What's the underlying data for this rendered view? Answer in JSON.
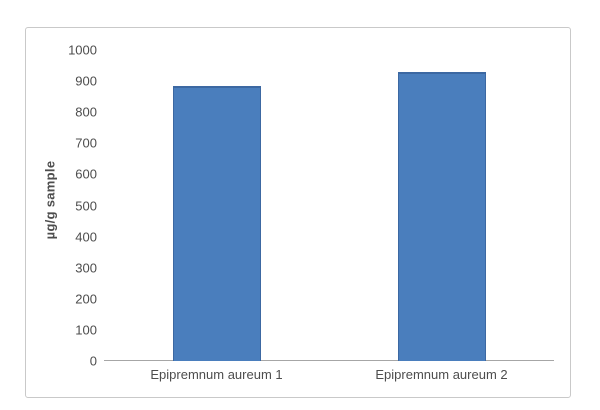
{
  "chart_data": {
    "type": "bar",
    "categories": [
      "Epipremnum aureum 1",
      "Epipremnum aureum 2"
    ],
    "values": [
      885,
      930
    ],
    "title": "",
    "xlabel": "",
    "ylabel": "µg/g sample",
    "ylim": [
      0,
      1000
    ],
    "yticks": [
      0,
      100,
      200,
      300,
      400,
      500,
      600,
      700,
      800,
      900,
      1000
    ],
    "grid": false,
    "legend_position": "none",
    "colors": {
      "bar_fill": "#4a7ebd",
      "bar_border": "#3c68a2",
      "axis_line": "#a6a6a6",
      "text": "#4d4d4d",
      "frame_border": "#c9c9c9",
      "background": "#ffffff"
    }
  }
}
